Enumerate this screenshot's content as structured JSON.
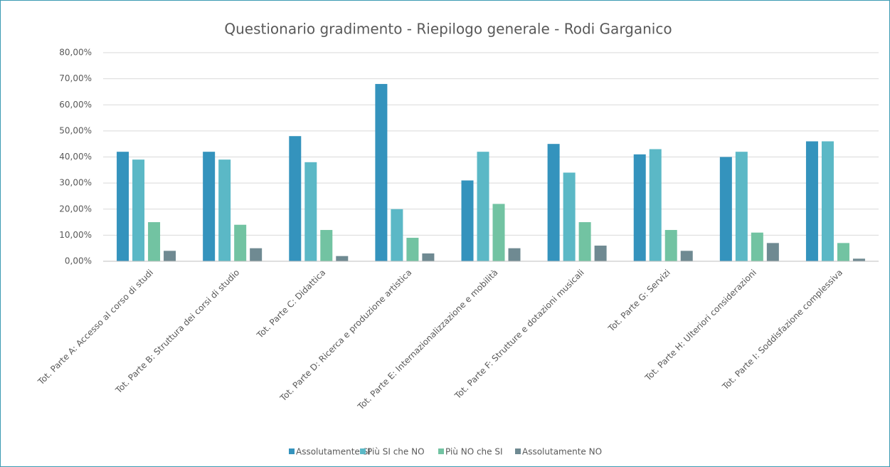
{
  "chart_data": {
    "type": "bar",
    "title": "Questionario gradimento - Riepilogo generale - Rodi Garganico",
    "categories": [
      "Tot. Parte A: Accesso al corso di studi",
      "Tot. Parte B: Struttura dei corsi di studio",
      "Tot. Parte C: Didattica",
      "Tot. Parte D: Ricerca e produzione artistica",
      "Tot. Parte E: Internazionalizzazione e mobilità",
      "Tot. Parte F: Strutture e dotazioni musicali",
      "Tot. Parte G: Servizi",
      "Tot. Parte H: Ulteriori considerazioni",
      "Tot. Parte I: Soddisfazione complessiva"
    ],
    "series": [
      {
        "name": "Assolutamente SI",
        "color": "#3493bd",
        "values": [
          42,
          42,
          48,
          68,
          31,
          45,
          41,
          40,
          46
        ]
      },
      {
        "name": "Più SI che NO",
        "color": "#5bb8c6",
        "values": [
          39,
          39,
          38,
          20,
          42,
          34,
          43,
          42,
          46
        ]
      },
      {
        "name": "Più NO che SI",
        "color": "#72c3a2",
        "values": [
          15,
          14,
          12,
          9,
          22,
          15,
          12,
          11,
          7
        ]
      },
      {
        "name": "Assolutamente NO",
        "color": "#6f8a92",
        "values": [
          4,
          5,
          2,
          3,
          5,
          6,
          4,
          7,
          1
        ]
      }
    ],
    "ylim": [
      0,
      80
    ],
    "yticks": [
      {
        "value": 0,
        "label": "0,00%"
      },
      {
        "value": 10,
        "label": "10,00%"
      },
      {
        "value": 20,
        "label": "20,00%"
      },
      {
        "value": 30,
        "label": "30,00%"
      },
      {
        "value": 40,
        "label": "40,00%"
      },
      {
        "value": 50,
        "label": "50,00%"
      },
      {
        "value": 60,
        "label": "60,00%"
      },
      {
        "value": 70,
        "label": "70,00%"
      },
      {
        "value": 80,
        "label": "80,00%"
      }
    ],
    "grid": true
  }
}
